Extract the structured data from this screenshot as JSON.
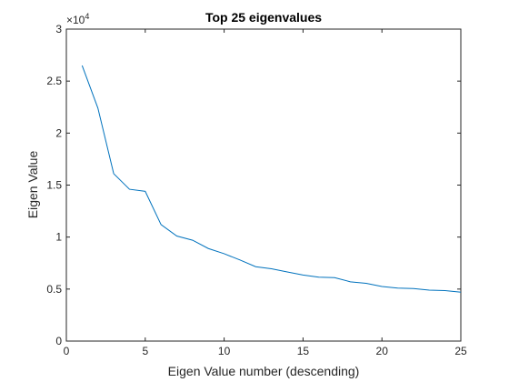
{
  "chart_data": {
    "type": "line",
    "title": "Top 25 eigenvalues",
    "xlabel": "Eigen Value number (descending)",
    "ylabel": "Eigen Value",
    "y_exponent_base": "×10",
    "y_exponent_power": "4",
    "xlim": [
      0,
      25
    ],
    "ylim": [
      0,
      3
    ],
    "xticks": [
      0,
      5,
      10,
      15,
      20,
      25
    ],
    "xtick_labels": [
      "0",
      "5",
      "10",
      "15",
      "20",
      "25"
    ],
    "yticks": [
      0,
      0.5,
      1,
      1.5,
      2,
      2.5,
      3
    ],
    "ytick_labels": [
      "0",
      "0.5",
      "1",
      "1.5",
      "2",
      "2.5",
      "3"
    ],
    "grid": false,
    "line_color": "#0072BD",
    "x": [
      1,
      2,
      3,
      4,
      5,
      6,
      7,
      8,
      9,
      10,
      11,
      12,
      13,
      14,
      15,
      16,
      17,
      18,
      19,
      20,
      21,
      22,
      23,
      24,
      25
    ],
    "values": [
      2.65,
      2.24,
      1.61,
      1.46,
      1.44,
      1.12,
      1.01,
      0.97,
      0.89,
      0.84,
      0.78,
      0.715,
      0.695,
      0.665,
      0.635,
      0.615,
      0.61,
      0.57,
      0.555,
      0.525,
      0.51,
      0.505,
      0.49,
      0.485,
      0.47
    ]
  }
}
